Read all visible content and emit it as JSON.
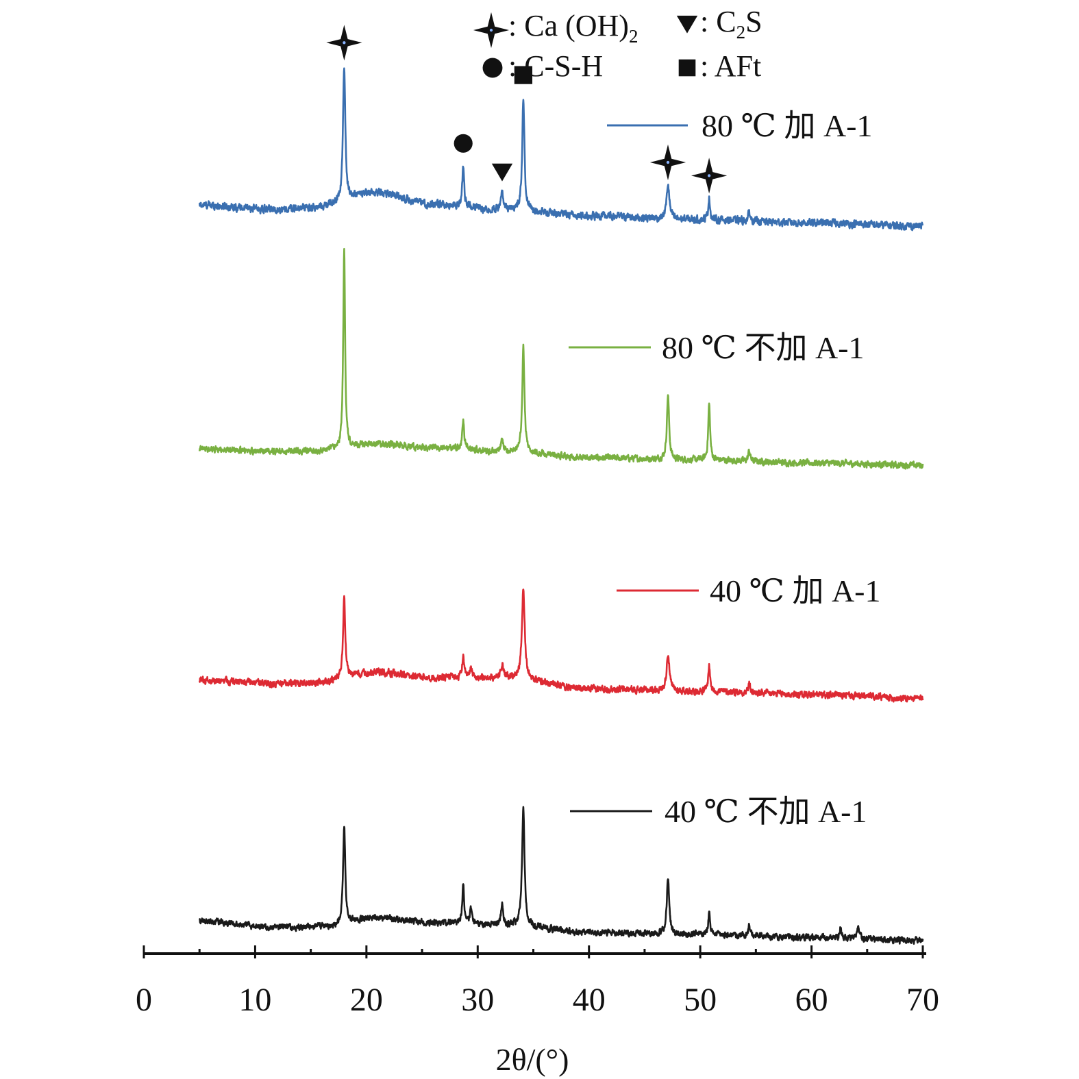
{
  "chart_data": {
    "type": "line",
    "title": "",
    "xlabel": "2θ/(°)",
    "ylabel": "",
    "xlim": [
      0,
      70
    ],
    "x_ticks": [
      "0",
      "10",
      "20",
      "30",
      "40",
      "50",
      "60",
      "70"
    ],
    "grid": false,
    "y_axis_visible": false,
    "x_range_measured": [
      5,
      70
    ],
    "phase_key": [
      {
        "marker": "star",
        "label": ": Ca (OH)",
        "sub": "2"
      },
      {
        "marker": "triangle-down",
        "label": ": C",
        "sub": "2",
        "suffix": "S"
      },
      {
        "marker": "circle",
        "label": ": C-S-H"
      },
      {
        "marker": "square",
        "label": ": AFt"
      }
    ],
    "phase_markers": [
      {
        "phase": "Ca(OH)2",
        "marker": "star",
        "x": 18.0
      },
      {
        "phase": "C-S-H",
        "marker": "circle",
        "x": 28.7
      },
      {
        "phase": "C2S",
        "marker": "triangle-down",
        "x": 32.2
      },
      {
        "phase": "AFt",
        "marker": "square",
        "x": 34.1
      },
      {
        "phase": "Ca(OH)2",
        "marker": "star",
        "x": 47.1
      },
      {
        "phase": "Ca(OH)2",
        "marker": "star",
        "x": 50.8
      }
    ],
    "series": [
      {
        "name": "80 ℃ 加 A-1",
        "color": "#3a6fb0",
        "baseline": [
          [
            5,
            0.88
          ],
          [
            12,
            0.74
          ],
          [
            15,
            0.8
          ],
          [
            21,
            1.28
          ],
          [
            26,
            0.9
          ],
          [
            33,
            0.72
          ],
          [
            40,
            0.54
          ],
          [
            50,
            0.42
          ],
          [
            60,
            0.32
          ],
          [
            70,
            0.22
          ]
        ],
        "peaks": [
          {
            "x": 18.0,
            "height": 4.3,
            "width": 0.12
          },
          {
            "x": 28.7,
            "height": 1.3,
            "width": 0.1
          },
          {
            "x": 32.2,
            "height": 0.5,
            "width": 0.15
          },
          {
            "x": 34.1,
            "height": 3.6,
            "width": 0.12
          },
          {
            "x": 47.1,
            "height": 1.1,
            "width": 0.15
          },
          {
            "x": 50.8,
            "height": 0.7,
            "width": 0.1
          },
          {
            "x": 54.4,
            "height": 0.3,
            "width": 0.1
          }
        ]
      },
      {
        "name": "80 ℃ 不加 A-1",
        "color": "#79b041",
        "baseline": [
          [
            5,
            0.75
          ],
          [
            12,
            0.67
          ],
          [
            15,
            0.67
          ],
          [
            21,
            0.95
          ],
          [
            26,
            0.8
          ],
          [
            33,
            0.65
          ],
          [
            40,
            0.43
          ],
          [
            50,
            0.35
          ],
          [
            60,
            0.24
          ],
          [
            70,
            0.15
          ]
        ],
        "peaks": [
          {
            "x": 18.0,
            "height": 7.4,
            "width": 0.1
          },
          {
            "x": 28.7,
            "height": 1.1,
            "width": 0.1
          },
          {
            "x": 32.2,
            "height": 0.5,
            "width": 0.12
          },
          {
            "x": 34.1,
            "height": 4.0,
            "width": 0.12
          },
          {
            "x": 47.1,
            "height": 2.4,
            "width": 0.12
          },
          {
            "x": 50.8,
            "height": 2.1,
            "width": 0.1
          },
          {
            "x": 54.4,
            "height": 0.4,
            "width": 0.1
          }
        ]
      },
      {
        "name": "40 ℃ 加 A-1",
        "color": "#dd2a33",
        "baseline": [
          [
            5,
            0.93
          ],
          [
            12,
            0.82
          ],
          [
            15,
            0.82
          ],
          [
            21,
            1.2
          ],
          [
            26,
            1.03
          ],
          [
            33,
            1.0
          ],
          [
            40,
            0.63
          ],
          [
            50,
            0.55
          ],
          [
            60,
            0.43
          ],
          [
            70,
            0.3
          ]
        ],
        "peaks": [
          {
            "x": 18.0,
            "height": 2.8,
            "width": 0.12
          },
          {
            "x": 28.7,
            "height": 0.8,
            "width": 0.1
          },
          {
            "x": 29.4,
            "height": 0.4,
            "width": 0.1
          },
          {
            "x": 32.2,
            "height": 0.5,
            "width": 0.12
          },
          {
            "x": 34.1,
            "height": 3.2,
            "width": 0.15
          },
          {
            "x": 47.1,
            "height": 1.3,
            "width": 0.15
          },
          {
            "x": 50.8,
            "height": 0.9,
            "width": 0.1
          },
          {
            "x": 54.4,
            "height": 0.3,
            "width": 0.1
          }
        ]
      },
      {
        "name": "40 ℃ 不加 A-1",
        "color": "#1a1a1a",
        "baseline": [
          [
            5,
            0.95
          ],
          [
            12,
            0.7
          ],
          [
            16,
            0.72
          ],
          [
            21,
            1.05
          ],
          [
            26,
            0.88
          ],
          [
            33,
            0.76
          ],
          [
            40,
            0.5
          ],
          [
            50,
            0.42
          ],
          [
            60,
            0.3
          ],
          [
            70,
            0.18
          ]
        ],
        "peaks": [
          {
            "x": 18.0,
            "height": 3.8,
            "width": 0.12
          },
          {
            "x": 28.7,
            "height": 1.6,
            "width": 0.1
          },
          {
            "x": 29.4,
            "height": 0.6,
            "width": 0.1
          },
          {
            "x": 32.2,
            "height": 0.8,
            "width": 0.12
          },
          {
            "x": 34.1,
            "height": 4.6,
            "width": 0.13
          },
          {
            "x": 47.1,
            "height": 2.2,
            "width": 0.13
          },
          {
            "x": 50.8,
            "height": 0.9,
            "width": 0.1
          },
          {
            "x": 54.4,
            "height": 0.4,
            "width": 0.1
          },
          {
            "x": 62.6,
            "height": 0.4,
            "width": 0.1
          },
          {
            "x": 64.2,
            "height": 0.4,
            "width": 0.12
          }
        ]
      }
    ]
  }
}
